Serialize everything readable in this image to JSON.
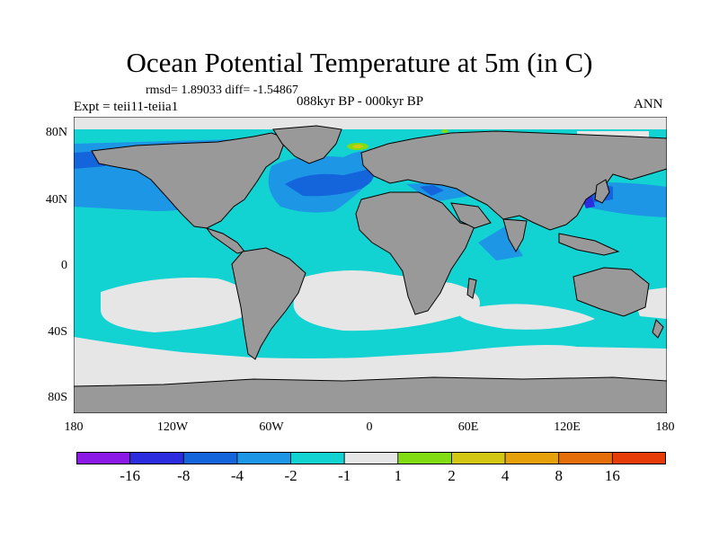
{
  "figure": {
    "title": "Ocean Potential Temperature at 5m (in C)",
    "stats": "rmsd= 1.89033 diff= -1.54867",
    "experiment": "Expt = teii11-teiia1",
    "period": "088kyr BP - 000kyr BP",
    "season": "ANN"
  },
  "axes": {
    "lat_ticks": [
      "80N",
      "40N",
      "0",
      "40S",
      "80S"
    ],
    "lon_ticks": [
      "180",
      "120W",
      "60W",
      "0",
      "60E",
      "120E",
      "180"
    ]
  },
  "colorbar": {
    "colors": [
      "#8c1ae6",
      "#2d2de0",
      "#1464dc",
      "#1e96e6",
      "#12d2d2",
      "#e6e6e6",
      "#82dc14",
      "#d2c814",
      "#e6a00a",
      "#e66e0a",
      "#e63c0a"
    ],
    "labels": [
      "-16",
      "-8",
      "-4",
      "-2",
      "-1",
      "1",
      "2",
      "4",
      "8",
      "16"
    ]
  },
  "map_colors": {
    "land": "#999999",
    "ocean_cyan": "#12d2d2",
    "ocean_light_blue": "#1e96e6",
    "ocean_blue": "#1464dc",
    "ocean_dark_blue": "#2d2de0",
    "neutral": "#e6e6e6",
    "green": "#82dc14",
    "yellow": "#d2c814"
  }
}
